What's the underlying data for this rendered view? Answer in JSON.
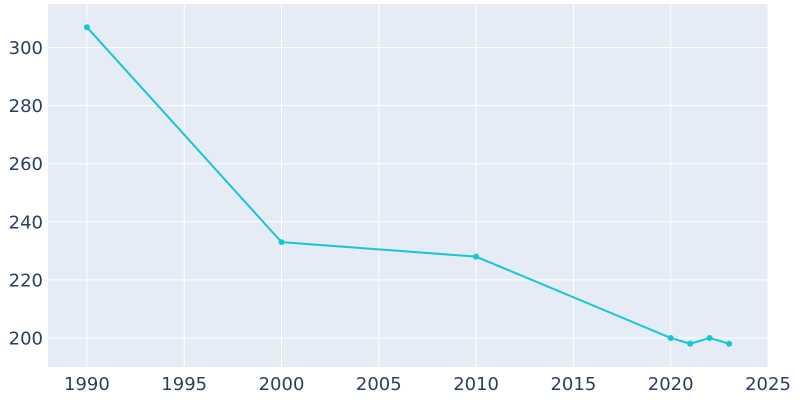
{
  "chart_data": {
    "type": "line",
    "title": "",
    "xlabel": "",
    "ylabel": "",
    "x": [
      1990,
      2000,
      2010,
      2020,
      2021,
      2022,
      2023
    ],
    "series": [
      {
        "values": [
          307,
          233,
          228,
          200,
          198,
          200,
          198
        ]
      }
    ],
    "xlim": [
      1988,
      2025
    ],
    "ylim": [
      190,
      315
    ],
    "xticks": [
      1990,
      1995,
      2000,
      2005,
      2010,
      2015,
      2020,
      2025
    ],
    "yticks": [
      200,
      220,
      240,
      260,
      280,
      300
    ],
    "grid": true,
    "colors": {
      "line": "#17c6d0",
      "plot_bg": "#e5ecf6",
      "grid": "#ffffff",
      "text": "#2a3f5f"
    }
  }
}
